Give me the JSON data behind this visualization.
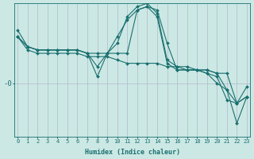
{
  "xlabel": "Humidex (Indice chaleur)",
  "background_color": "#cce8e4",
  "grid_color": "#b0b8cc",
  "line_color": "#1a7070",
  "x_min": 0,
  "x_max": 23,
  "ytick_label": "-0",
  "ytick_pos": 2,
  "y_min": -6,
  "y_max": 14,
  "figsize": [
    3.2,
    2.0
  ],
  "dpi": 100,
  "lines": [
    {
      "x": [
        0,
        1,
        2,
        3,
        4,
        5,
        6,
        7,
        8,
        9,
        10,
        11,
        12,
        13,
        14,
        15,
        16,
        17,
        18,
        19,
        20,
        21,
        22,
        23
      ],
      "y": [
        9,
        7,
        6.5,
        6.5,
        6.5,
        6.5,
        6.5,
        6,
        6,
        6,
        5.5,
        5,
        5,
        5,
        5,
        4.5,
        4.5,
        4.5,
        4,
        4,
        3.5,
        1,
        -1,
        0
      ]
    },
    {
      "x": [
        0,
        1,
        2,
        3,
        4,
        5,
        6,
        7,
        8,
        9,
        10,
        11,
        12,
        13,
        14,
        15,
        16,
        17,
        18,
        19,
        20,
        21,
        22,
        23
      ],
      "y": [
        9,
        7.5,
        7,
        7,
        7,
        7,
        7,
        6.5,
        3,
        6.5,
        9,
        11.5,
        13,
        13.5,
        12,
        5,
        4,
        4,
        4,
        4,
        3.5,
        3.5,
        -1,
        1.5
      ]
    },
    {
      "x": [
        0,
        1,
        2,
        3,
        4,
        5,
        6,
        7,
        8,
        9,
        10,
        11,
        12,
        13,
        14,
        15,
        16,
        17,
        18,
        19,
        20,
        21,
        22,
        23
      ],
      "y": [
        9,
        7.5,
        7,
        7,
        7,
        7,
        7,
        6.5,
        6.5,
        6.5,
        6.5,
        6.5,
        13,
        13.5,
        13,
        8,
        4,
        4,
        4,
        3.5,
        3,
        -0.5,
        -1,
        0
      ]
    },
    {
      "x": [
        0,
        1,
        2,
        3,
        4,
        5,
        6,
        7,
        8,
        9,
        10,
        11,
        12,
        13,
        14,
        15,
        16,
        17,
        18,
        19,
        20,
        21,
        22,
        23
      ],
      "y": [
        10,
        7.5,
        7,
        7,
        7,
        7,
        7,
        6.5,
        4.5,
        6.5,
        8,
        12,
        13.5,
        14,
        12.5,
        5.5,
        4.5,
        4,
        4,
        3.5,
        2,
        1,
        -4,
        0
      ]
    }
  ]
}
